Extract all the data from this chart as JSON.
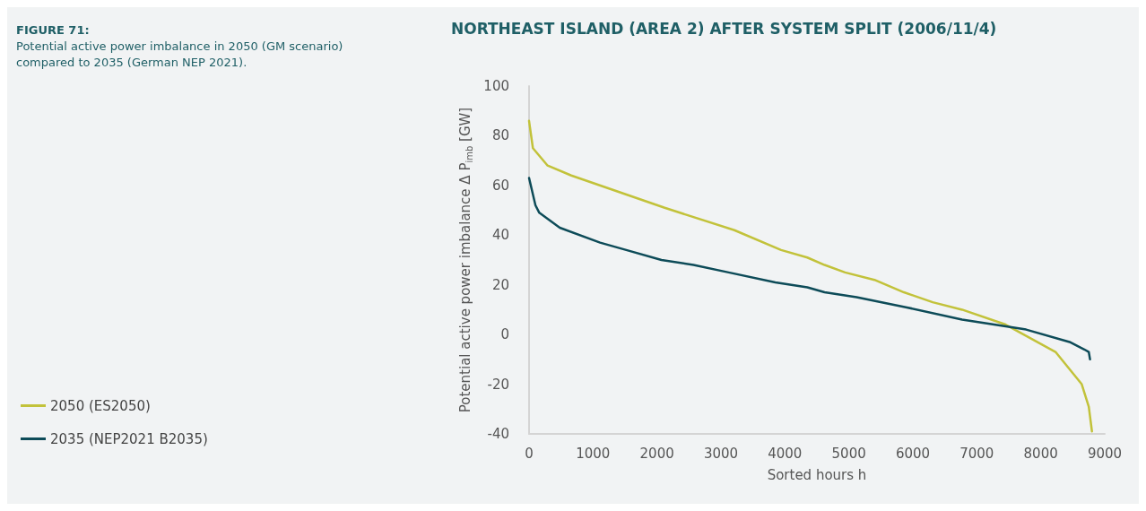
{
  "chart_data": {
    "type": "line",
    "title": "NORTHEAST ISLAND (AREA 2) AFTER SYSTEM SPLIT (2006/11/4)",
    "annotations": [
      "FIGURE 71:",
      "Potential active power imbalance in 2050 (GM scenario) compared to 2035 (German NEP 2021)."
    ],
    "xlabel": "Sorted hours h",
    "ylabel": "Potential active power imbalance Δ P$_{imb}$ [GW]",
    "series": [
      {
        "name": "2050 (ES2050)",
        "color": "#c2c23a",
        "x": [
          0,
          60,
          290,
          660,
          2120,
          3210,
          3940,
          4350,
          4620,
          4940,
          5400,
          5860,
          6310,
          6770,
          7450,
          8230,
          8640,
          8750,
          8800
        ],
        "values": [
          86,
          75,
          68,
          64,
          51,
          42,
          34,
          31,
          28,
          25,
          22,
          17,
          13,
          10,
          4,
          -7,
          -20,
          -29,
          -39
        ]
      },
      {
        "name": "2035 (NEP2021 B2035)",
        "color": "#0d4b58",
        "x": [
          0,
          100,
          160,
          480,
          1110,
          1520,
          2070,
          2570,
          3120,
          3850,
          4350,
          4620,
          5120,
          5890,
          6770,
          7770,
          8450,
          8680,
          8750,
          8770
        ],
        "values": [
          63,
          52,
          49,
          43,
          37,
          34,
          30,
          28,
          25,
          21,
          19,
          17,
          15,
          11,
          6,
          2,
          -3,
          -6,
          -7,
          -10
        ]
      }
    ],
    "xlim": [
      0,
      9000
    ],
    "xticks": [
      0,
      1000,
      2000,
      3000,
      4000,
      5000,
      6000,
      7000,
      8000,
      9000
    ],
    "ylim": [
      -40,
      100
    ],
    "yticks": [
      -40,
      -20,
      0,
      20,
      40,
      60,
      80,
      100
    ],
    "grid": false,
    "legend": "left",
    "marker": "none",
    "line_style": "solid"
  }
}
